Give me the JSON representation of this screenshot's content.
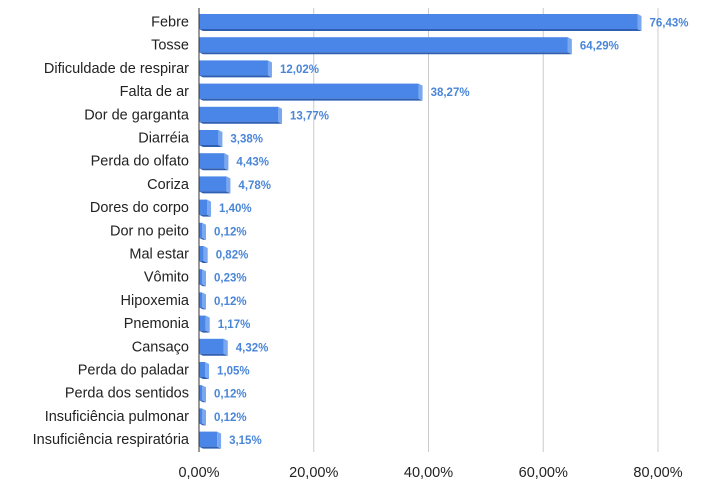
{
  "chart_data": {
    "type": "bar",
    "orientation": "horizontal",
    "style": "3d",
    "categories": [
      "Febre",
      "Tosse",
      "Dificuldade de respirar",
      "Falta de ar",
      "Dor de garganta",
      "Diarréia",
      "Perda do olfato",
      "Coriza",
      "Dores do corpo",
      "Dor no peito",
      "Mal estar",
      "Vômito",
      "Hipoxemia",
      "Pnemonia",
      "Cansaço",
      "Perda do paladar",
      "Perda dos sentidos",
      "Insuficiência pulmonar",
      "Insuficiência respiratória"
    ],
    "values": [
      76.43,
      64.29,
      12.02,
      38.27,
      13.77,
      3.38,
      4.43,
      4.78,
      1.4,
      0.12,
      0.82,
      0.23,
      0.12,
      1.17,
      4.32,
      1.05,
      0.12,
      0.12,
      3.15
    ],
    "data_labels": [
      "76,43%",
      "64,29%",
      "12,02%",
      "38,27%",
      "13,77%",
      "3,38%",
      "4,43%",
      "4,78%",
      "1,40%",
      "0,12%",
      "0,82%",
      "0,23%",
      "0,12%",
      "1,17%",
      "4,32%",
      "1,05%",
      "0,12%",
      "0,12%",
      "3,15%"
    ],
    "x_ticks": [
      0,
      20,
      40,
      60,
      80
    ],
    "x_tick_labels": [
      "0,00%",
      "20,00%",
      "40,00%",
      "60,00%",
      "80,00%"
    ],
    "xlim": [
      0,
      80
    ],
    "grid": "vertical",
    "legend": "none",
    "title": "",
    "xlabel": "",
    "ylabel": "",
    "colors": {
      "bar_front": "#4a86e8",
      "bar_top": "#7aa8f0",
      "bar_side": "#2f5fb3",
      "data_label": "#4a86d8",
      "grid": "#cccccc",
      "axis": "#333333"
    }
  }
}
